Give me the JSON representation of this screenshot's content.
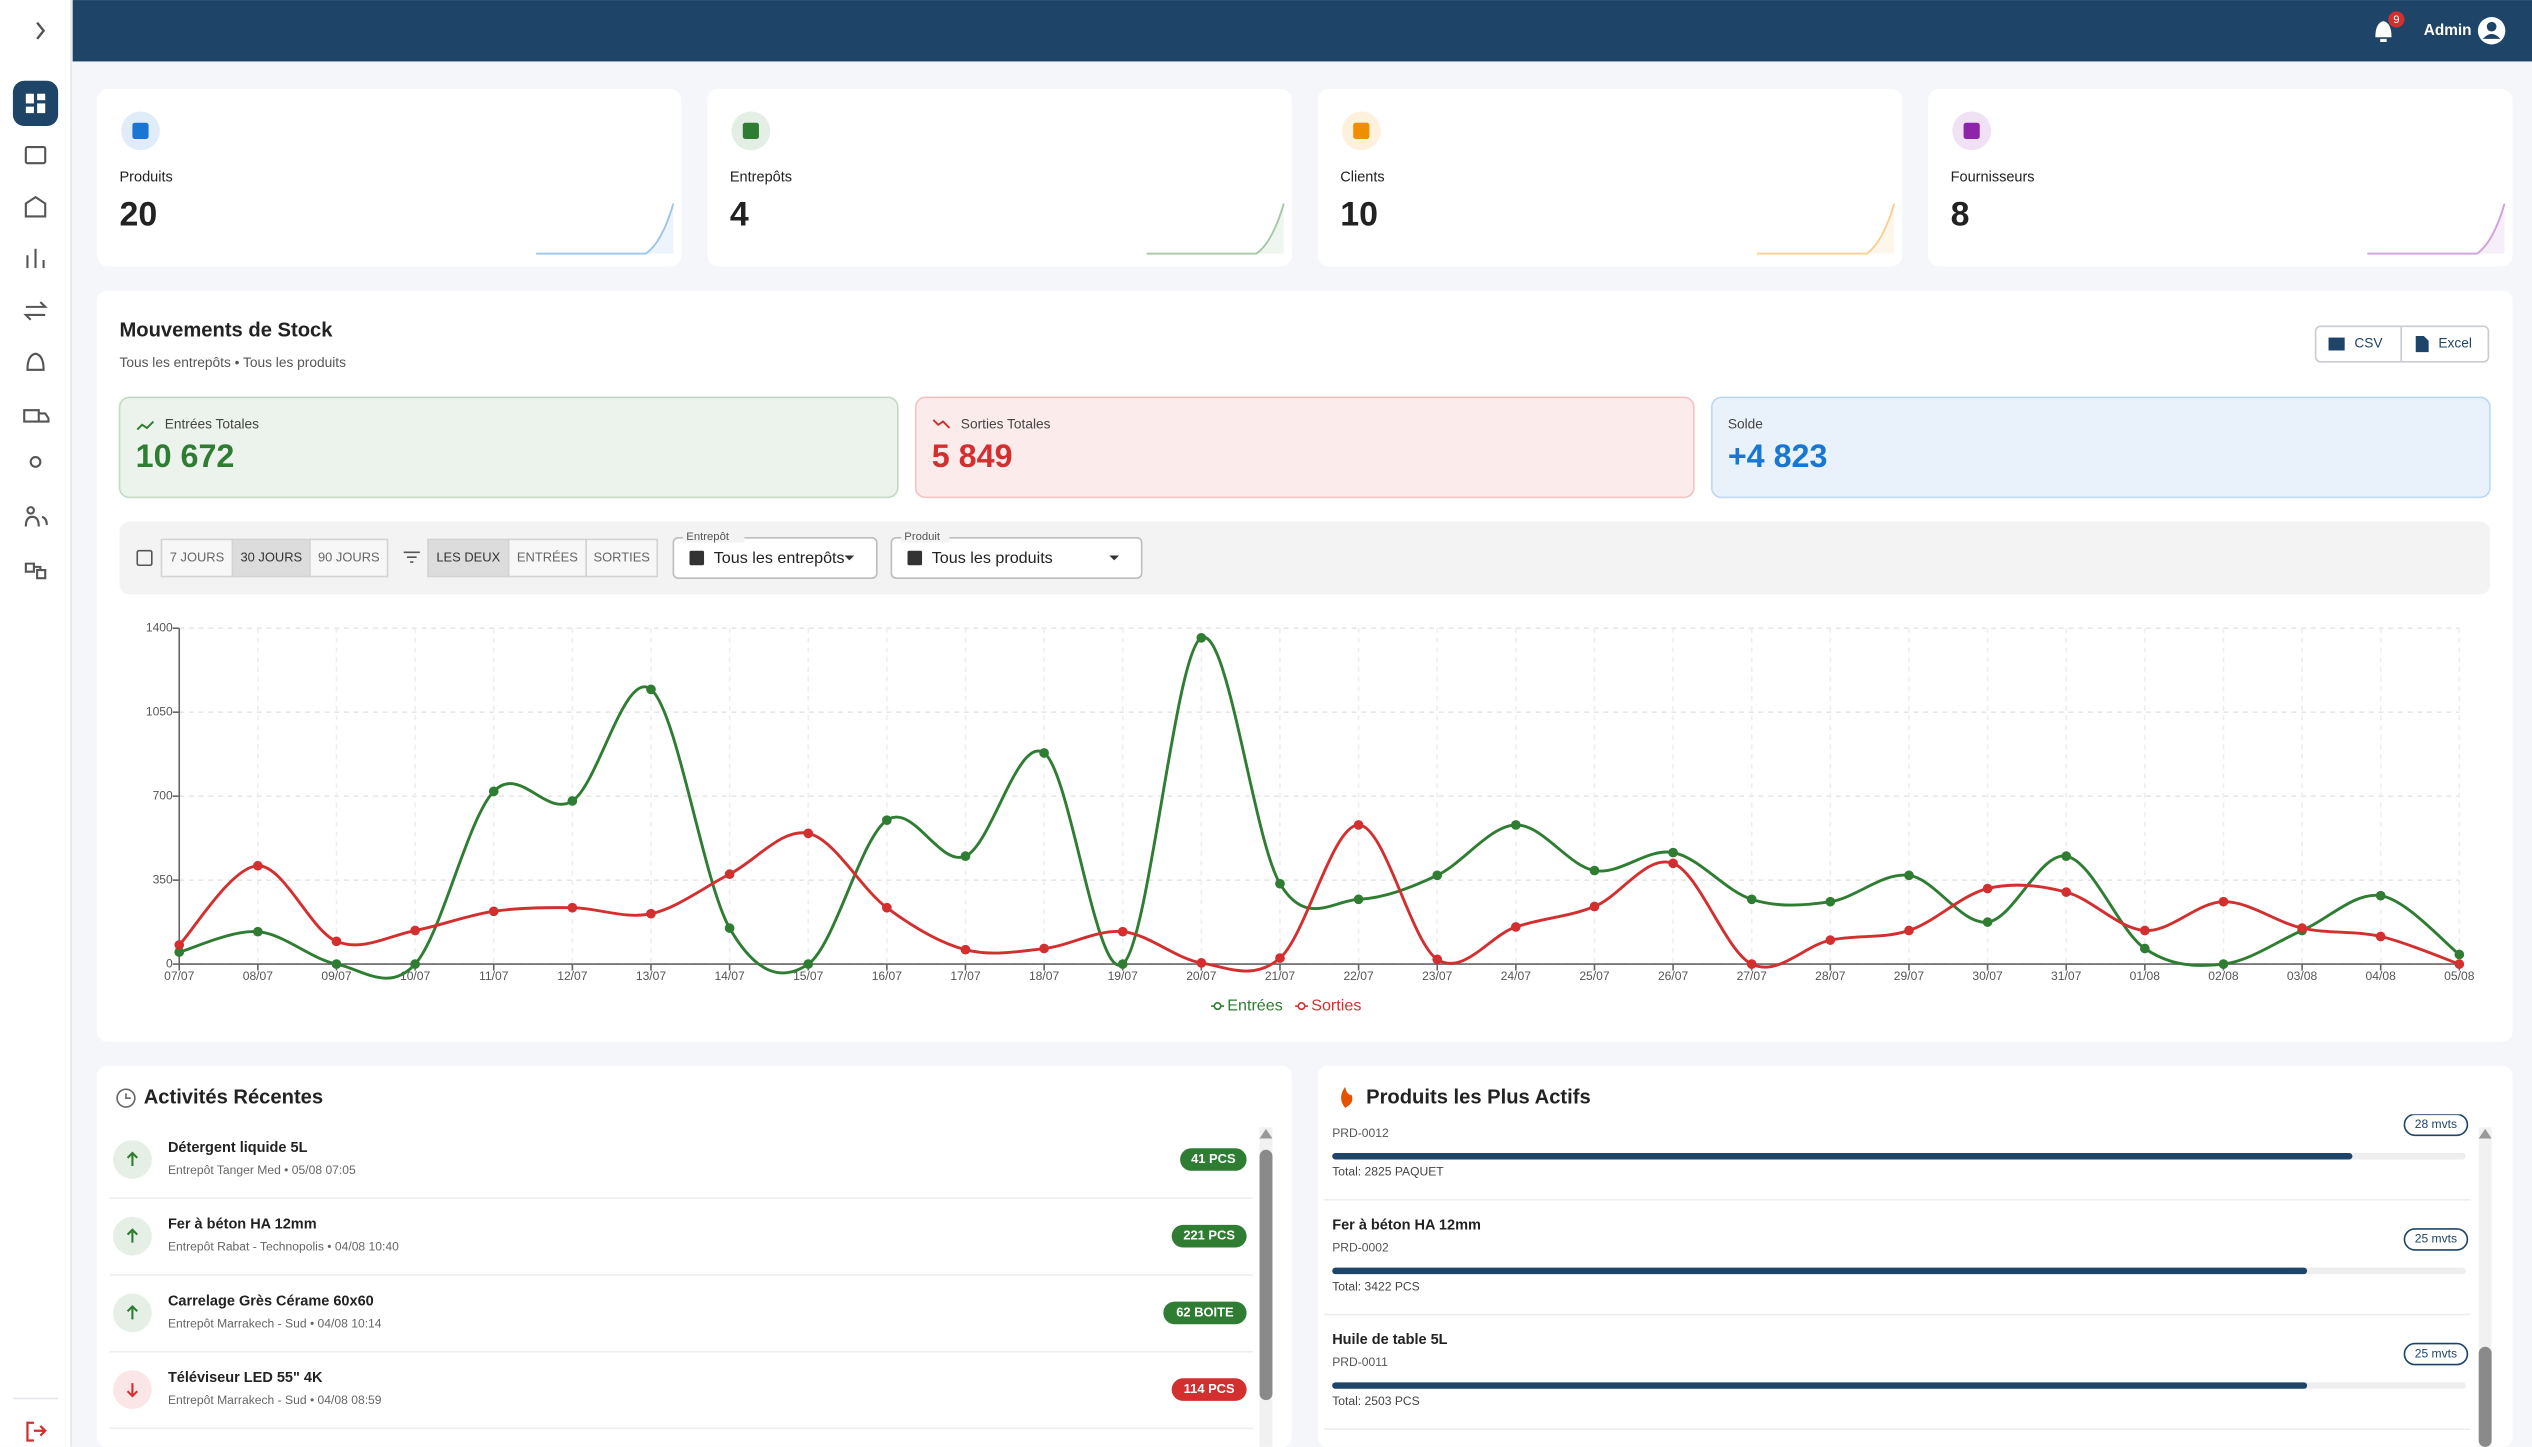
{
  "header": {
    "user": "Admin",
    "notifications": 9
  },
  "stats": [
    {
      "label": "Produits",
      "value": 20,
      "color": "#1976d2"
    },
    {
      "label": "Entrepôts",
      "value": 4,
      "color": "#2e7d32"
    },
    {
      "label": "Clients",
      "value": 10,
      "color": "#ef8f00"
    },
    {
      "label": "Fournisseurs",
      "value": 8,
      "color": "#8e24aa"
    }
  ],
  "movements": {
    "title": "Mouvements de Stock",
    "subtitle": "Tous les entrepôts • Tous les produits",
    "exports": [
      "CSV",
      "Excel"
    ],
    "summary": [
      {
        "label": "Entrées Totales",
        "value": "10 672",
        "color": "#2e7d32"
      },
      {
        "label": "Sorties Totales",
        "value": "5 849",
        "color": "#d32f2f"
      },
      {
        "label": "Solde",
        "value": "+4 823",
        "color": "#1976d2"
      }
    ],
    "periods": [
      "7 JOURS",
      "30 JOURS",
      "90 JOURS"
    ],
    "types": [
      "LES DEUX",
      "ENTRÉES",
      "SORTIES"
    ],
    "filters": [
      {
        "label": "Entrepôt",
        "value": "Tous les entrepôts"
      },
      {
        "label": "Produit",
        "value": "Tous les produits"
      }
    ]
  },
  "chart_data": {
    "type": "line",
    "categories": [
      "07/07",
      "08/07",
      "09/07",
      "10/07",
      "11/07",
      "12/07",
      "13/07",
      "14/07",
      "15/07",
      "16/07",
      "17/07",
      "18/07",
      "19/07",
      "20/07",
      "21/07",
      "22/07",
      "23/07",
      "24/07",
      "25/07",
      "26/07",
      "27/07",
      "28/07",
      "29/07",
      "30/07",
      "31/07",
      "01/08",
      "02/08",
      "03/08",
      "04/08",
      "05/08"
    ],
    "series": [
      {
        "name": "Entrées",
        "color": "#2e7d32",
        "values": [
          50,
          135,
          0,
          0,
          720,
          680,
          1145,
          150,
          0,
          600,
          450,
          880,
          0,
          1360,
          335,
          270,
          370,
          580,
          390,
          465,
          270,
          260,
          370,
          175,
          450,
          65,
          0,
          140,
          285,
          40
        ]
      },
      {
        "name": "Sorties",
        "color": "#d32f2f",
        "values": [
          80,
          410,
          95,
          140,
          220,
          235,
          210,
          375,
          545,
          235,
          60,
          65,
          135,
          5,
          25,
          580,
          20,
          155,
          240,
          420,
          0,
          100,
          140,
          315,
          300,
          140,
          260,
          150,
          115,
          0
        ]
      }
    ],
    "ylim": [
      0,
      1400
    ],
    "yticks": [
      0,
      350,
      700,
      1050,
      1400
    ],
    "grid": true,
    "legend": "bottom"
  },
  "activities": {
    "title": "Activités Récentes",
    "items": [
      {
        "name": "Détergent liquide 5L",
        "detail": "Entrepôt Tanger Med • 05/08 07:05",
        "qty": "41 PCS",
        "color": "#2e7d32"
      },
      {
        "name": "Fer à béton HA 12mm",
        "detail": "Entrepôt Rabat - Technopolis • 04/08 10:40",
        "qty": "221 PCS",
        "color": "#2e7d32"
      },
      {
        "name": "Carrelage Grès Cérame 60x60",
        "detail": "Entrepôt Marrakech - Sud • 04/08 10:14",
        "qty": "62 BOITE",
        "color": "#2e7d32"
      },
      {
        "name": "Téléviseur LED 55\" 4K",
        "detail": "Entrepôt Marrakech - Sud • 04/08 08:59",
        "qty": "114 PCS",
        "color": "#d32f2f"
      }
    ]
  },
  "top_products": {
    "title": "Produits les Plus Actifs",
    "items": [
      {
        "code": "PRD-0012",
        "total": "Total: 2825 PAQUET",
        "count": "28 mvts",
        "progress": 90
      },
      {
        "name": "Fer à béton HA 12mm",
        "code": "PRD-0002",
        "total": "Total: 3422 PCS",
        "count": "25 mvts",
        "progress": 86
      },
      {
        "name": "Huile de table 5L",
        "code": "PRD-0011",
        "total": "Total: 2503 PCS",
        "count": "25 mvts",
        "progress": 86
      }
    ]
  }
}
